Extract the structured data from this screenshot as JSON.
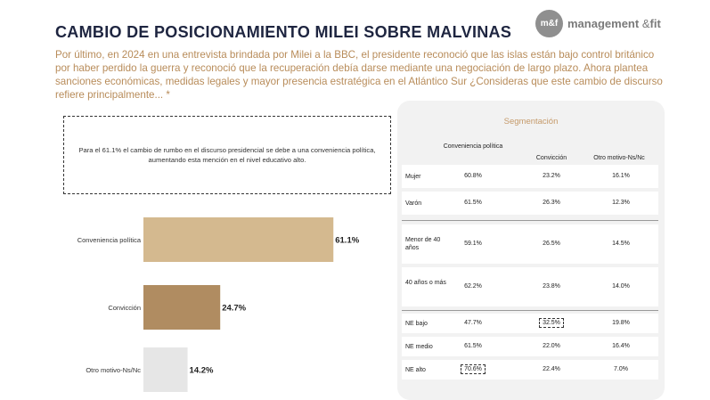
{
  "header": {
    "title": "CAMBIO DE POSICIONAMIENTO MILEI SOBRE MALVINAS",
    "logo_mark": "m&f",
    "logo_name": "management",
    "logo_amp": "&",
    "logo_fit": "fit"
  },
  "question": "Por último, en 2024 en una entrevista brindada por Milei a la BBC, el presidente reconoció que las islas están bajo control británico por haber perdido la guerra y reconoció que la recuperación debía darse mediante una negociación de largo plazo. Ahora plantea sanciones económicas, medidas legales y mayor presencia estratégica en el Atlántico Sur ¿Consideras que este cambio de discurso refiere principalmente... *",
  "callout": "Para el 61.1% el cambio de rumbo en el discurso presidencial se debe a una conveniencia política, aumentando esta mención en el nivel educativo alto.",
  "chart_data": [
    {
      "type": "bar",
      "orientation": "horizontal",
      "categories": [
        "Conveniencia política",
        "Convicción",
        "Otro motivo-Ns/Nc"
      ],
      "values": [
        61.1,
        24.7,
        14.2
      ],
      "value_labels": [
        "61.1%",
        "24.7%",
        "14.2%"
      ],
      "colors": [
        "#d4b98f",
        "#b08c61",
        "#e6e6e6"
      ],
      "xlim": [
        0,
        100
      ],
      "grid": false
    },
    {
      "type": "table",
      "title": "Segmentación",
      "columns": [
        "Conveniencia política",
        "Convicción",
        "Otro motivo-Ns/Nc"
      ],
      "groups": [
        {
          "rows": [
            {
              "label": "Mujer",
              "values": [
                "60.8%",
                "23.2%",
                "16.1%"
              ]
            },
            {
              "label": "Varón",
              "values": [
                "61.5%",
                "26.3%",
                "12.3%"
              ]
            }
          ]
        },
        {
          "rows": [
            {
              "label": "Menor de 40 años",
              "values": [
                "59.1%",
                "26.5%",
                "14.5%"
              ]
            },
            {
              "label": "40 años o más",
              "values": [
                "62.2%",
                "23.8%",
                "14.0%"
              ]
            }
          ]
        },
        {
          "rows": [
            {
              "label": "NE bajo",
              "values": [
                "47.7%",
                "32.5%",
                "19.8%"
              ]
            },
            {
              "label": "NE medio",
              "values": [
                "61.5%",
                "22.0%",
                "16.4%"
              ]
            },
            {
              "label": "NE alto",
              "values": [
                "70.6%",
                "22.4%",
                "7.0%"
              ]
            }
          ]
        }
      ],
      "highlighted": [
        {
          "row": "NE bajo",
          "column": "Convicción"
        },
        {
          "row": "NE alto",
          "column": "Conveniencia política"
        }
      ]
    }
  ]
}
